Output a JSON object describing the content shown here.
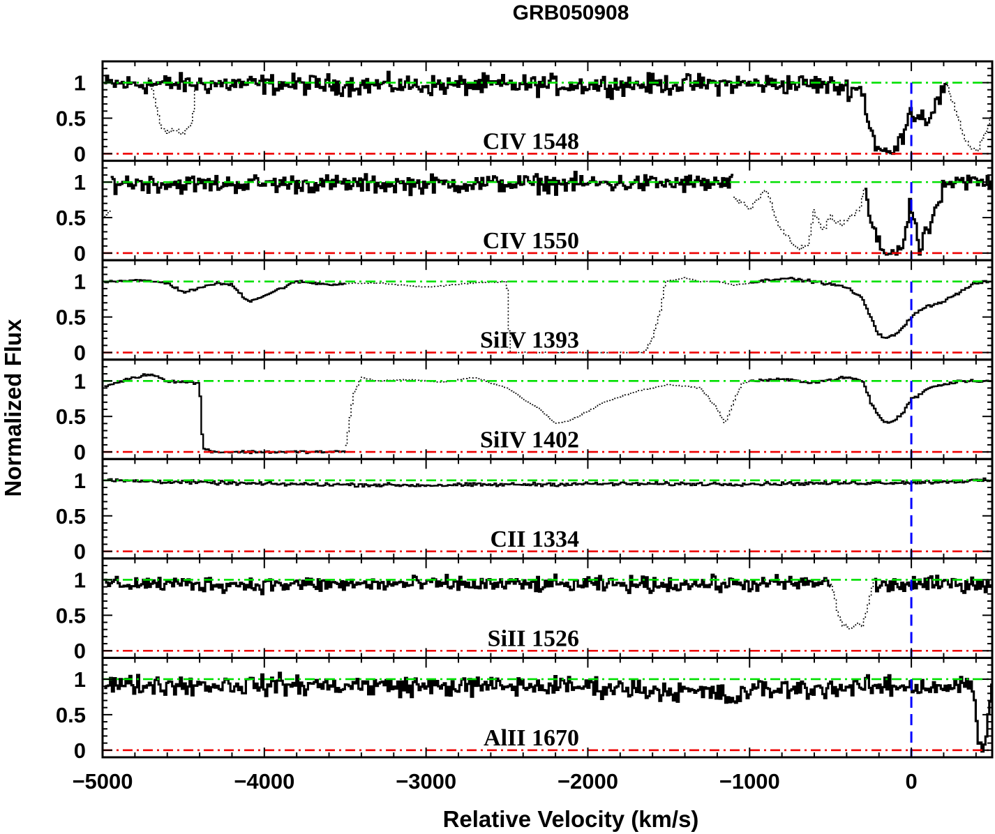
{
  "chart_data": {
    "type": "line",
    "title": "GRB050908",
    "xlabel": "Relative Velocity (km/s)",
    "ylabel": "Normalized Flux",
    "xlim": [
      -5000,
      500
    ],
    "x_ticks": [
      -5000,
      -4000,
      -3000,
      -2000,
      -1000,
      0
    ],
    "x_tick_labels": [
      "−5000",
      "−4000",
      "−3000",
      "−2000",
      "−1000",
      "0"
    ],
    "ylim": [
      -0.1,
      1.3
    ],
    "y_ticks": [
      0,
      0.5,
      1
    ],
    "y_tick_labels": [
      "0",
      "0.5",
      "1"
    ],
    "continuum_level": 1,
    "zero_level": 0,
    "reference_velocity": 0,
    "colors": {
      "continuum": "#00e000",
      "zero": "#ee0000",
      "reference": "#0000ff",
      "spectrum": "#000000"
    },
    "panels": [
      {
        "label": "CIV 1548",
        "noise": 0.22,
        "segments": [
          {
            "style": "solid",
            "x": [
              -4990,
              -4700,
              -4600,
              -4420,
              -4200,
              -3500,
              -3000,
              -2000,
              -1000,
              -600,
              -300,
              -270,
              -230,
              -200,
              -150,
              -110,
              -70,
              -30,
              0,
              40,
              100,
              160,
              220
            ],
            "y": [
              0.98,
              0.98,
              0.98,
              0.98,
              0.98,
              0.97,
              0.96,
              0.97,
              0.98,
              0.98,
              0.9,
              0.5,
              0.2,
              0.05,
              0.0,
              0.02,
              0.15,
              0.5,
              0.6,
              0.55,
              0.5,
              0.72,
              0.95
            ]
          },
          {
            "style": "dotted",
            "x": [
              -4720,
              -4680,
              -4640,
              -4600,
              -4560,
              -4520,
              -4480,
              -4440,
              -4420
            ],
            "y": [
              1.1,
              0.8,
              0.4,
              0.3,
              0.35,
              0.3,
              0.3,
              0.5,
              1.1
            ]
          },
          {
            "style": "dotted",
            "x": [
              220,
              260,
              300,
              340,
              380,
              420,
              460,
              500
            ],
            "y": [
              0.95,
              0.7,
              0.4,
              0.15,
              0.05,
              0.1,
              0.3,
              0.5
            ]
          }
        ]
      },
      {
        "label": "CIV 1550",
        "noise": 0.2,
        "segments": [
          {
            "style": "dotted",
            "x": [
              -4990,
              -4950
            ],
            "y": [
              0.5,
              0.6
            ]
          },
          {
            "style": "solid",
            "x": [
              -4950,
              -4500,
              -4000,
              -3500,
              -3000,
              -2500,
              -2000,
              -1500,
              -1100
            ],
            "y": [
              1.0,
              0.97,
              0.98,
              0.97,
              0.97,
              0.98,
              0.98,
              0.98,
              0.98
            ]
          },
          {
            "style": "dotted",
            "x": [
              -1100,
              -1000,
              -900,
              -820,
              -760,
              -700,
              -640,
              -600,
              -550,
              -500,
              -440,
              -380,
              -320,
              -290
            ],
            "y": [
              0.8,
              0.6,
              0.9,
              0.4,
              0.2,
              0.05,
              0.1,
              0.6,
              0.3,
              0.5,
              0.4,
              0.5,
              0.6,
              0.9
            ]
          },
          {
            "style": "solid",
            "x": [
              -290,
              -250,
              -200,
              -150,
              -100,
              -50,
              0,
              50,
              100,
              150,
              200,
              300,
              400,
              500
            ],
            "y": [
              0.9,
              0.45,
              0.1,
              0.0,
              0.05,
              0.1,
              0.7,
              0.0,
              0.3,
              0.6,
              0.9,
              1.0,
              1.0,
              1.0
            ]
          }
        ]
      },
      {
        "label": "SiIV 1393",
        "noise": 0.03,
        "segments": [
          {
            "style": "solid",
            "x": [
              -4990,
              -4800,
              -4600,
              -4500,
              -4400,
              -4300,
              -4200,
              -4100,
              -4000,
              -3900,
              -3800,
              -3700,
              -3600,
              -3500
            ],
            "y": [
              1.0,
              1.02,
              0.98,
              0.85,
              0.9,
              0.98,
              0.95,
              0.72,
              0.8,
              0.9,
              1.0,
              0.98,
              0.96,
              0.97
            ]
          },
          {
            "style": "dotted",
            "x": [
              -3500,
              -3300,
              -3000,
              -2700,
              -2500,
              -2480,
              -2400,
              -2200,
              -2000,
              -1800,
              -1650,
              -1600,
              -1550,
              -1520,
              -1400,
              -1300,
              -1200,
              -1100,
              -1000
            ],
            "y": [
              0.97,
              0.98,
              0.92,
              0.98,
              1.0,
              0.0,
              0.0,
              0.0,
              0.0,
              0.0,
              0.0,
              0.2,
              0.6,
              1.0,
              1.05,
              1.0,
              1.0,
              0.95,
              0.98
            ]
          },
          {
            "style": "solid",
            "x": [
              -1000,
              -800,
              -600,
              -400,
              -300,
              -250,
              -200,
              -150,
              -100,
              -50,
              0,
              50,
              100,
              200,
              300,
              400,
              500
            ],
            "y": [
              0.98,
              1.05,
              1.0,
              0.92,
              0.75,
              0.5,
              0.25,
              0.2,
              0.25,
              0.35,
              0.5,
              0.6,
              0.65,
              0.72,
              0.85,
              0.98,
              1.0
            ]
          }
        ]
      },
      {
        "label": "SiIV 1402",
        "noise": 0.03,
        "segments": [
          {
            "style": "solid",
            "x": [
              -4990,
              -4850,
              -4700,
              -4600,
              -4400,
              -4380,
              -4300,
              -4000,
              -3800,
              -3600,
              -3500
            ],
            "y": [
              0.92,
              1.02,
              1.1,
              1.0,
              0.97,
              0.05,
              0.0,
              0.0,
              0.0,
              0.0,
              0.0
            ]
          },
          {
            "style": "dotted",
            "x": [
              -3500,
              -3450,
              -3400,
              -3300,
              -3100,
              -2900,
              -2700,
              -2500,
              -2300,
              -2200,
              -2100,
              -1900,
              -1700,
              -1500,
              -1300,
              -1200,
              -1150,
              -1100,
              -1050,
              -1000
            ],
            "y": [
              0.0,
              0.8,
              1.05,
              1.0,
              1.02,
              0.98,
              1.05,
              0.9,
              0.6,
              0.4,
              0.45,
              0.7,
              0.85,
              0.95,
              0.9,
              0.6,
              0.4,
              0.7,
              0.95,
              1.0
            ]
          },
          {
            "style": "solid",
            "x": [
              -1000,
              -800,
              -600,
              -400,
              -300,
              -250,
              -200,
              -150,
              -100,
              -50,
              0,
              50,
              100,
              200,
              300,
              400,
              500
            ],
            "y": [
              1.0,
              1.02,
              0.98,
              1.05,
              1.0,
              0.7,
              0.5,
              0.4,
              0.45,
              0.55,
              0.75,
              0.8,
              0.9,
              0.95,
              1.0,
              1.0,
              1.0
            ]
          }
        ]
      },
      {
        "label": "CII 1334",
        "noise": 0.04,
        "segments": [
          {
            "style": "solid",
            "x": [
              -4990,
              -4000,
              -3000,
              -2000,
              -1000,
              0,
              500
            ],
            "y": [
              1.0,
              0.95,
              0.93,
              0.95,
              0.95,
              0.97,
              1.0
            ]
          }
        ]
      },
      {
        "label": "SiII 1526",
        "noise": 0.17,
        "segments": [
          {
            "style": "solid",
            "x": [
              -4990,
              -4000,
              -3000,
              -2000,
              -1000,
              -500
            ],
            "y": [
              0.95,
              0.93,
              0.94,
              0.93,
              0.94,
              0.95
            ]
          },
          {
            "style": "dotted",
            "x": [
              -500,
              -460,
              -420,
              -380,
              -340,
              -300,
              -260,
              -230
            ],
            "y": [
              1.0,
              0.6,
              0.35,
              0.3,
              0.4,
              0.35,
              0.7,
              1.0
            ]
          },
          {
            "style": "solid",
            "x": [
              -230,
              0,
              500
            ],
            "y": [
              0.92,
              0.93,
              0.95
            ]
          }
        ]
      },
      {
        "label": "AlII 1670",
        "noise": 0.22,
        "segments": [
          {
            "style": "solid",
            "x": [
              -4990,
              -4000,
              -3000,
              -2000,
              -1200,
              -1100,
              -1000,
              0,
              380,
              420,
              450,
              500
            ],
            "y": [
              0.92,
              0.92,
              0.9,
              0.9,
              0.8,
              0.7,
              0.85,
              0.9,
              0.9,
              0.1,
              0.0,
              0.9
            ]
          }
        ]
      }
    ]
  }
}
